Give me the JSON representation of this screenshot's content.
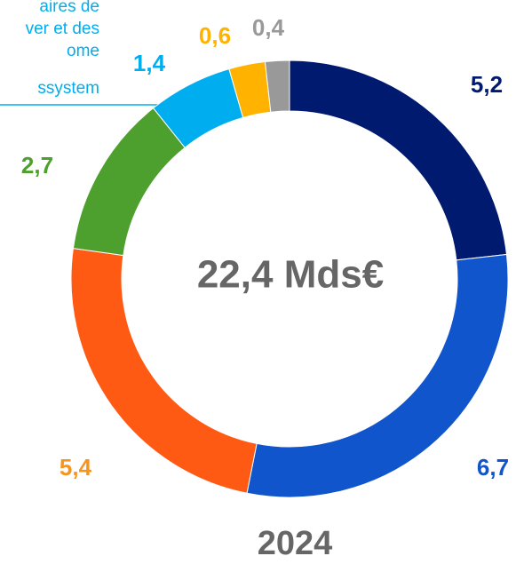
{
  "chart_data": {
    "type": "donut",
    "annotations": [
      "aires de",
      "ver et des",
      "ome",
      "ssystem"
    ],
    "center_label": "22,4 Mds€",
    "subtitle": "2024",
    "values": [
      5.2,
      6.7,
      5.4,
      2.7,
      1.4,
      0.6,
      0.4
    ],
    "value_labels": [
      "5,2",
      "6,7",
      "5,4",
      "2,7",
      "1,4",
      "0,6",
      "0,4"
    ],
    "colors": [
      "#001a70",
      "#1155cc",
      "#ff5a14",
      "#4ea02e",
      "#00aeef",
      "#ffb300",
      "#999999"
    ],
    "label_colors": [
      "#001a70",
      "#1155cc",
      "#f7941d",
      "#4ea02e",
      "#00aeef",
      "#ffb300",
      "#999999"
    ]
  }
}
